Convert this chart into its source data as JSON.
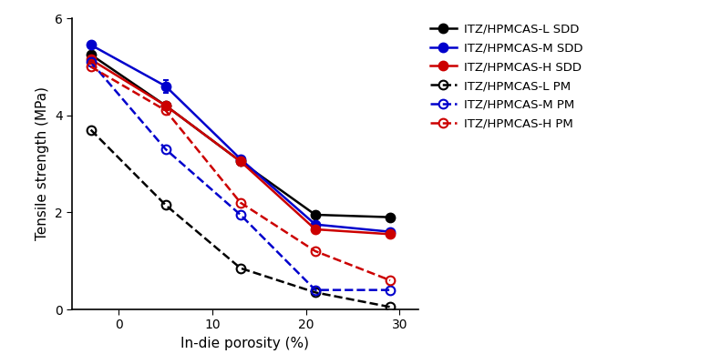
{
  "xlabel": "In-die porosity (%)",
  "ylabel": "Tensile strength (MPa)",
  "xlim": [
    -5,
    32
  ],
  "ylim": [
    0,
    6
  ],
  "xticks": [
    0,
    10,
    20,
    30
  ],
  "yticks": [
    0,
    2,
    4,
    6
  ],
  "SDD_L": {
    "x": [
      -3,
      5,
      13,
      21,
      29
    ],
    "y": [
      5.25,
      4.2,
      3.05,
      1.95,
      1.9
    ],
    "yerr": [
      0.0,
      0.0,
      0.0,
      0.05,
      0.0
    ],
    "color": "#000000",
    "label": "ITZ/HPMCAS-L SDD",
    "linestyle": "-",
    "marker": "o",
    "fillstyle": "full"
  },
  "SDD_M": {
    "x": [
      -3,
      5,
      13,
      21,
      29
    ],
    "y": [
      5.45,
      4.6,
      3.1,
      1.75,
      1.6
    ],
    "yerr": [
      0.0,
      0.13,
      0.0,
      0.05,
      0.05
    ],
    "color": "#0000cc",
    "label": "ITZ/HPMCAS-M SDD",
    "linestyle": "-",
    "marker": "o",
    "fillstyle": "full"
  },
  "SDD_H": {
    "x": [
      -3,
      5,
      13,
      21,
      29
    ],
    "y": [
      5.15,
      4.2,
      3.05,
      1.65,
      1.55
    ],
    "yerr": [
      0.0,
      0.05,
      0.05,
      0.08,
      0.07
    ],
    "color": "#cc0000",
    "label": "ITZ/HPMCAS-H SDD",
    "linestyle": "-",
    "marker": "o",
    "fillstyle": "full"
  },
  "PM_L": {
    "x": [
      -3,
      5,
      13,
      21,
      29
    ],
    "y": [
      3.7,
      2.15,
      0.85,
      0.35,
      0.05
    ],
    "yerr": [
      0.0,
      0.0,
      0.0,
      0.0,
      0.0
    ],
    "color": "#000000",
    "label": "ITZ/HPMCAS-L PM",
    "linestyle": "--",
    "marker": "o",
    "fillstyle": "none"
  },
  "PM_M": {
    "x": [
      -3,
      5,
      13,
      21,
      29
    ],
    "y": [
      5.1,
      3.3,
      1.95,
      0.4,
      0.4
    ],
    "yerr": [
      0.0,
      0.0,
      0.0,
      0.0,
      0.0
    ],
    "color": "#0000cc",
    "label": "ITZ/HPMCAS-M PM",
    "linestyle": "--",
    "marker": "o",
    "fillstyle": "none"
  },
  "PM_H": {
    "x": [
      -3,
      5,
      13,
      21,
      29
    ],
    "y": [
      5.0,
      4.1,
      2.2,
      1.2,
      0.6
    ],
    "yerr": [
      0.0,
      0.0,
      0.0,
      0.0,
      0.0
    ],
    "color": "#cc0000",
    "label": "ITZ/HPMCAS-H PM",
    "linestyle": "--",
    "marker": "o",
    "fillstyle": "none"
  },
  "background_color": "#ffffff",
  "legend_fontsize": 9.5,
  "axis_fontsize": 11,
  "tick_fontsize": 10,
  "linewidth": 1.8,
  "markersize": 7
}
